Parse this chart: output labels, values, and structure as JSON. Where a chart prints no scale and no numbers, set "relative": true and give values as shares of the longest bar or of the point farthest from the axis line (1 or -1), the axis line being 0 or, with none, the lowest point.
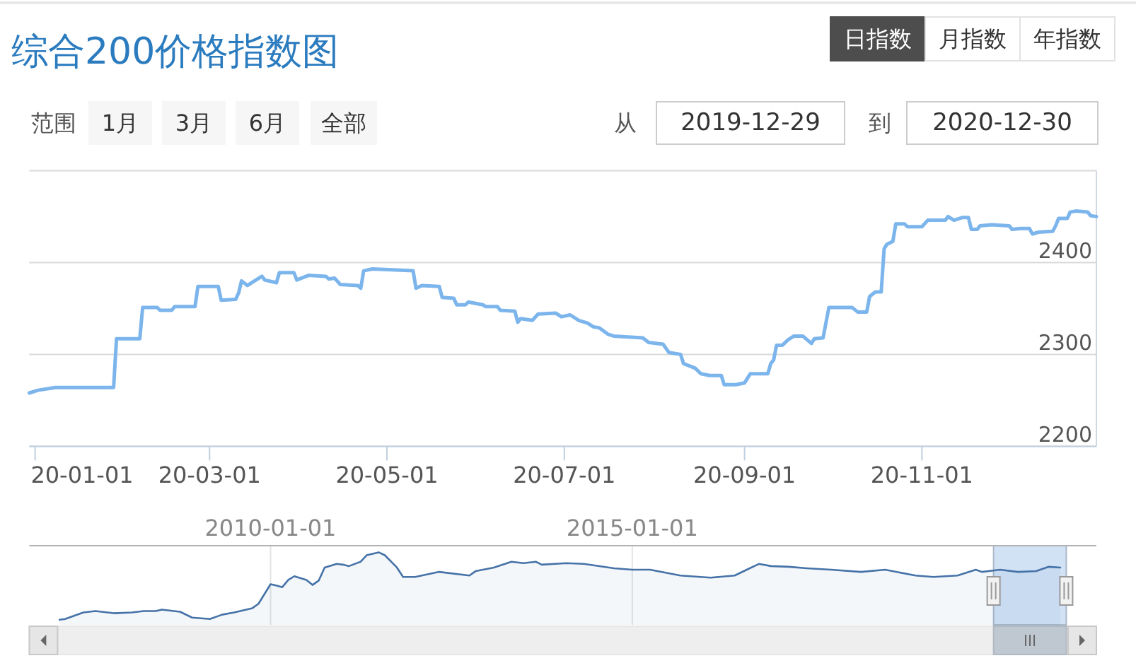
{
  "chart_data": [
    {
      "type": "line",
      "title": "综合200价格指数图",
      "annotations": [
        "日指数",
        "月指数",
        "年指数",
        "范围",
        "1月",
        "3月",
        "6月",
        "全部",
        "从",
        "2019-12-29",
        "到",
        "2020-12-30"
      ],
      "x": [
        "2019-12-30",
        "2020-01-02",
        "2020-01-08",
        "2020-01-28",
        "2020-01-29",
        "2020-02-06",
        "2020-02-07",
        "2020-02-12",
        "2020-02-13",
        "2020-02-17",
        "2020-02-18",
        "2020-02-25",
        "2020-02-26",
        "2020-03-04",
        "2020-03-05",
        "2020-03-10",
        "2020-03-11",
        "2020-03-12",
        "2020-03-14",
        "2020-03-16",
        "2020-03-19",
        "2020-03-20",
        "2020-03-24",
        "2020-03-25",
        "2020-03-30",
        "2020-03-31",
        "2020-04-04",
        "2020-04-10",
        "2020-04-11",
        "2020-04-13",
        "2020-04-15",
        "2020-04-21",
        "2020-04-22",
        "2020-04-23",
        "2020-04-26",
        "2020-05-10",
        "2020-05-11",
        "2020-05-13",
        "2020-05-19",
        "2020-05-20",
        "2020-05-24",
        "2020-05-25",
        "2020-05-28",
        "2020-05-29",
        "2020-06-03",
        "2020-06-04",
        "2020-06-08",
        "2020-06-09",
        "2020-06-14",
        "2020-06-15",
        "2020-06-16",
        "2020-06-20",
        "2020-06-22",
        "2020-06-28",
        "2020-06-30",
        "2020-07-03",
        "2020-07-06",
        "2020-07-09",
        "2020-07-11",
        "2020-07-13",
        "2020-07-16",
        "2020-07-18",
        "2020-07-28",
        "2020-07-30",
        "2020-08-04",
        "2020-08-06",
        "2020-08-10",
        "2020-08-11",
        "2020-08-15",
        "2020-08-17",
        "2020-08-20",
        "2020-08-24",
        "2020-08-25",
        "2020-08-29",
        "2020-09-01",
        "2020-09-03",
        "2020-09-09",
        "2020-09-10",
        "2020-09-11",
        "2020-09-12",
        "2020-09-14",
        "2020-09-16",
        "2020-09-18",
        "2020-09-21",
        "2020-09-24",
        "2020-09-25",
        "2020-09-28",
        "2020-09-30",
        "2020-10-08",
        "2020-10-10",
        "2020-10-13",
        "2020-10-14",
        "2020-10-16",
        "2020-10-18",
        "2020-10-19",
        "2020-10-20",
        "2020-10-22",
        "2020-10-23",
        "2020-10-26",
        "2020-10-27",
        "2020-11-01",
        "2020-11-03",
        "2020-11-09",
        "2020-11-10",
        "2020-11-12",
        "2020-11-15",
        "2020-11-17",
        "2020-11-18",
        "2020-11-20",
        "2020-11-21",
        "2020-11-25",
        "2020-12-01",
        "2020-12-02",
        "2020-12-05",
        "2020-12-08",
        "2020-12-09",
        "2020-12-11",
        "2020-12-16",
        "2020-12-17",
        "2020-12-18",
        "2020-12-21",
        "2020-12-22",
        "2020-12-24",
        "2020-12-28",
        "2020-12-29",
        "2020-12-31"
      ],
      "values": [
        2258,
        2261,
        2264,
        2264,
        2317,
        2317,
        2351,
        2351,
        2348,
        2348,
        2352,
        2352,
        2374,
        2374,
        2359,
        2360,
        2367,
        2380,
        2375,
        2379,
        2385,
        2381,
        2378,
        2389,
        2389,
        2381,
        2386,
        2385,
        2382,
        2383,
        2376,
        2375,
        2372,
        2391,
        2393,
        2391,
        2372,
        2375,
        2374,
        2362,
        2361,
        2354,
        2354,
        2357,
        2354,
        2352,
        2352,
        2348,
        2347,
        2335,
        2339,
        2337,
        2344,
        2345,
        2341,
        2343,
        2337,
        2334,
        2330,
        2329,
        2322,
        2320,
        2318,
        2313,
        2311,
        2302,
        2300,
        2290,
        2285,
        2279,
        2277,
        2277,
        2267,
        2267,
        2269,
        2279,
        2279,
        2290,
        2294,
        2310,
        2310,
        2316,
        2320,
        2320,
        2312,
        2317,
        2318,
        2351,
        2351,
        2346,
        2346,
        2363,
        2368,
        2368,
        2415,
        2420,
        2423,
        2442,
        2442,
        2439,
        2439,
        2446,
        2446,
        2450,
        2446,
        2449,
        2449,
        2436,
        2436,
        2440,
        2441,
        2440,
        2436,
        2437,
        2437,
        2431,
        2433,
        2434,
        2440,
        2448,
        2448,
        2455,
        2456,
        2455,
        2451,
        2450
      ],
      "color": "#7cb5ec",
      "xlim": [
        "2019-12-30",
        "2020-12-31"
      ],
      "xticks": [
        {
          "value": "2020-01-01",
          "label": "20-01-01"
        },
        {
          "value": "2020-03-01",
          "label": "20-03-01"
        },
        {
          "value": "2020-05-01",
          "label": "20-05-01"
        },
        {
          "value": "2020-07-01",
          "label": "20-07-01"
        },
        {
          "value": "2020-09-01",
          "label": "20-09-01"
        },
        {
          "value": "2020-11-01",
          "label": "20-11-01"
        }
      ],
      "ylim": [
        2200,
        2500
      ],
      "yticks": [
        2200,
        2300,
        2400,
        {
          "value": 2500,
          "label": null
        }
      ],
      "grid": "y"
    },
    {
      "type": "area",
      "relative": true,
      "x": [
        "2007-02",
        "2007-03",
        "2007-06",
        "2007-08",
        "2007-11",
        "2008-02",
        "2008-04",
        "2008-06",
        "2008-07",
        "2008-10",
        "2008-12",
        "2009-03",
        "2009-05",
        "2009-07",
        "2009-10",
        "2009-11",
        "2010-01",
        "2010-02",
        "2010-03",
        "2010-04",
        "2010-05",
        "2010-07",
        "2010-08",
        "2010-09",
        "2010-10",
        "2010-12",
        "2011-01",
        "2011-02",
        "2011-04",
        "2011-05",
        "2011-07",
        "2011-08",
        "2011-10",
        "2011-11",
        "2012-01",
        "2012-05",
        "2012-10",
        "2012-11",
        "2013-02",
        "2013-05",
        "2013-07",
        "2013-09",
        "2013-10",
        "2014-02",
        "2014-05",
        "2014-10",
        "2015-01",
        "2015-04",
        "2015-09",
        "2016-02",
        "2016-06",
        "2016-08",
        "2016-10",
        "2016-12",
        "2017-03",
        "2017-06",
        "2017-10",
        "2018-03",
        "2018-07",
        "2018-12",
        "2019-03",
        "2019-07",
        "2019-10",
        "2019-11",
        "2020-02",
        "2020-05",
        "2020-08",
        "2020-10",
        "2020-12"
      ],
      "values": [
        0.07,
        0.08,
        0.17,
        0.19,
        0.16,
        0.17,
        0.19,
        0.19,
        0.21,
        0.18,
        0.1,
        0.08,
        0.14,
        0.17,
        0.23,
        0.29,
        0.56,
        0.54,
        0.52,
        0.62,
        0.67,
        0.62,
        0.55,
        0.61,
        0.79,
        0.84,
        0.83,
        0.81,
        0.87,
        0.96,
        1,
        0.96,
        0.79,
        0.66,
        0.66,
        0.73,
        0.68,
        0.74,
        0.79,
        0.87,
        0.85,
        0.87,
        0.83,
        0.85,
        0.84,
        0.78,
        0.76,
        0.76,
        0.68,
        0.65,
        0.68,
        0.76,
        0.84,
        0.81,
        0.8,
        0.78,
        0.76,
        0.73,
        0.76,
        0.68,
        0.66,
        0.68,
        0.76,
        0.73,
        0.76,
        0.73,
        0.74,
        0.8,
        0.79
      ],
      "color": "#4572a7",
      "xlim": [
        "2006-09",
        "2021-06"
      ],
      "xticks": [
        {
          "value": "2010-01-01",
          "label": "2010-01-01"
        },
        {
          "value": "2015-01-01",
          "label": "2015-01-01"
        }
      ],
      "grid": "x",
      "bands": [
        {
          "axis": "x",
          "from": "2019-12-30",
          "to": "2020-12-31",
          "color": "#d2e2f5"
        }
      ]
    }
  ]
}
